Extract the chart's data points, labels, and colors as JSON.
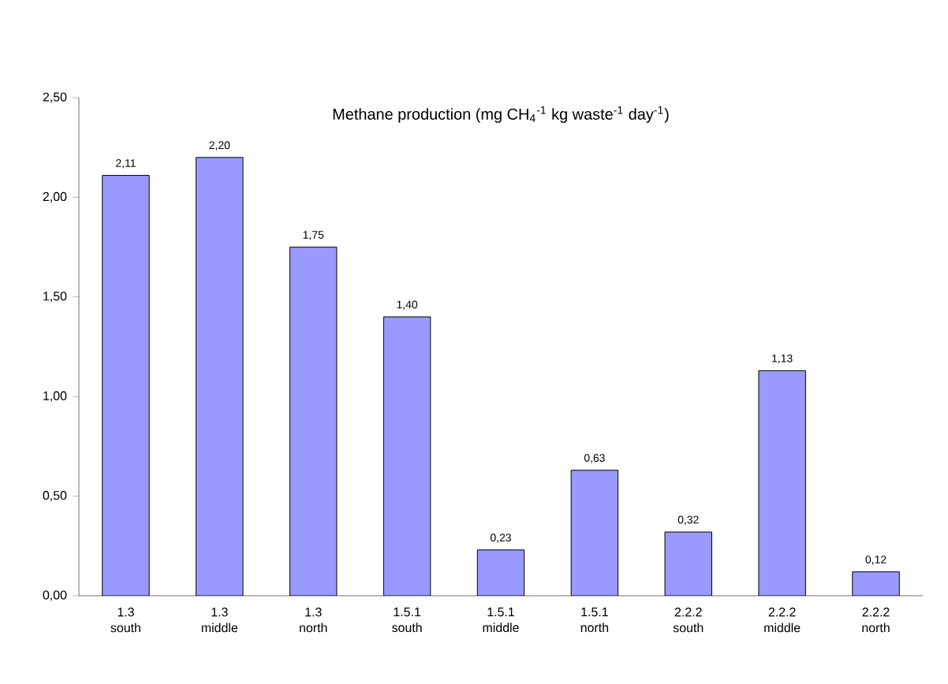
{
  "chart_data": {
    "type": "bar",
    "title": "Methane production  (mg CH$_{4}$$^{-1}$ kg waste$^{-1}$ day$^{-1}$)",
    "categories": [
      "1.3 south",
      "1.3 middle",
      "1.3 north",
      "1.5.1 south",
      "1.5.1 middle",
      "1.5.1 north",
      "2.2.2 south",
      "2.2.2 middle",
      "2.2.2 north"
    ],
    "values": [
      2.11,
      2.2,
      1.75,
      1.4,
      0.23,
      0.63,
      0.32,
      1.13,
      0.12
    ],
    "value_labels": [
      "2,11",
      "2,20",
      "1,75",
      "1,40",
      "0,23",
      "0,63",
      "0,32",
      "1,13",
      "0,12"
    ],
    "color": "#9999ff",
    "ylim": [
      0,
      2.5
    ],
    "yticks": [
      {
        "value": 0,
        "label": "0,00"
      },
      {
        "value": 0.5,
        "label": "0,50"
      },
      {
        "value": 1,
        "label": "1,00"
      },
      {
        "value": 1.5,
        "label": "1,50"
      },
      {
        "value": 2,
        "label": "2,00"
      },
      {
        "value": 2.5,
        "label": "2,50"
      }
    ],
    "grid": false
  }
}
